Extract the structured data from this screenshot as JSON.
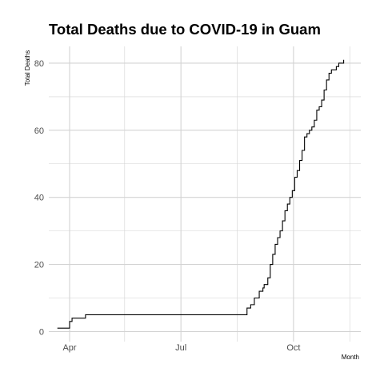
{
  "chart_data": {
    "type": "line",
    "title": "Total Deaths due to COVID-19 in Guam",
    "xlabel": "Month",
    "ylabel": "Total Deaths",
    "x_tick_labels": [
      "Apr",
      "Jul",
      "Oct"
    ],
    "x_ticks": [
      "2020-04-01",
      "2020-07-01",
      "2020-10-01"
    ],
    "x_minor_ticks": [
      "2020-05-16",
      "2020-08-16",
      "2020-11-16"
    ],
    "xlim": [
      "2020-03-15",
      "2020-11-25"
    ],
    "y_ticks": [
      0,
      20,
      40,
      60,
      80
    ],
    "ylim": [
      -3,
      85
    ],
    "grid": true,
    "legend": "none",
    "colors": {
      "line": "#000000",
      "grid": "#d3d3d3",
      "background": "#ffffff"
    },
    "series": [
      {
        "x": [
          "2020-03-22",
          "2020-03-31",
          "2020-04-01",
          "2020-04-03",
          "2020-04-10",
          "2020-04-14",
          "2020-08-21",
          "2020-08-24",
          "2020-08-27",
          "2020-08-30",
          "2020-09-01",
          "2020-09-03",
          "2020-09-06",
          "2020-09-07",
          "2020-09-08",
          "2020-09-10",
          "2020-09-12",
          "2020-09-14",
          "2020-09-16",
          "2020-09-18",
          "2020-09-20",
          "2020-09-22",
          "2020-09-24",
          "2020-09-26",
          "2020-09-28",
          "2020-09-30",
          "2020-10-02",
          "2020-10-04",
          "2020-10-06",
          "2020-10-08",
          "2020-10-10",
          "2020-10-12",
          "2020-10-14",
          "2020-10-16",
          "2020-10-18",
          "2020-10-20",
          "2020-10-22",
          "2020-10-24",
          "2020-10-26",
          "2020-10-28",
          "2020-10-30",
          "2020-11-01",
          "2020-11-03",
          "2020-11-05",
          "2020-11-07",
          "2020-11-09",
          "2020-11-11"
        ],
        "y": [
          1,
          1,
          3,
          4,
          4,
          5,
          5,
          7,
          8,
          10,
          10,
          12,
          13,
          14,
          14,
          16,
          20,
          23,
          26,
          28,
          30,
          33,
          36,
          38,
          40,
          42,
          46,
          48,
          51,
          54,
          58,
          59,
          60,
          61,
          63,
          66,
          67,
          69,
          72,
          75,
          77,
          78,
          78,
          79,
          80,
          80,
          81
        ]
      }
    ]
  }
}
